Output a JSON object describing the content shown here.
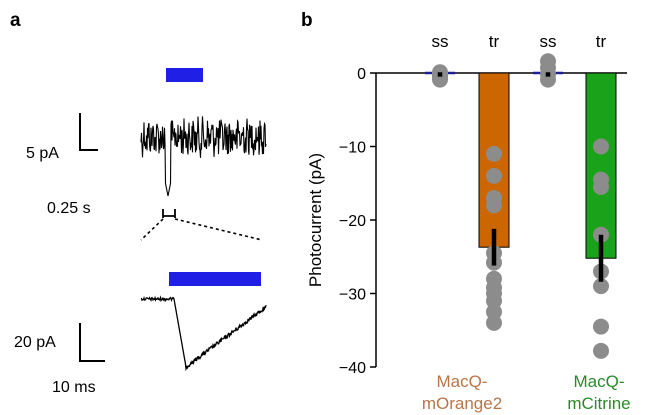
{
  "panel_a": {
    "label": "a",
    "scale_top": {
      "amplitude": "5 pA",
      "time": "0.25 s"
    },
    "scale_bottom": {
      "amplitude": "20 pA",
      "time": "10 ms"
    }
  },
  "panel_b": {
    "label": "b"
  },
  "colors": {
    "stimulus": "#1f1fe6",
    "morange_bar": "#cc6600",
    "mcitrine_bar": "#1aa31a",
    "morange_text": "#b8764a",
    "mcitrine_text": "#2a8a2a",
    "dots": "#8c8c8c"
  },
  "chart_data": {
    "type": "bar",
    "ylabel": "Photocurrent (pA)",
    "ylim": [
      -40,
      0
    ],
    "yticks": [
      0,
      -10,
      -20,
      -30,
      -40
    ],
    "ytick_labels": [
      "0",
      "−10",
      "−20",
      "−30",
      "−40"
    ],
    "categories": [
      "ss",
      "tr",
      "ss",
      "tr"
    ],
    "groups": [
      {
        "line1": "MacQ-",
        "line2": "mOrange2",
        "color_key": "morange_text"
      },
      {
        "line1": "MacQ-",
        "line2": "mCitrine",
        "color_key": "mcitrine_text"
      }
    ],
    "bars": [
      {
        "category": "ss",
        "group": "MacQ-mOrange2",
        "value": -0.2,
        "sem": 0.3,
        "color_key": null,
        "points": [
          0,
          -0.3,
          -0.6,
          -0.9,
          0.1,
          -0.4
        ]
      },
      {
        "category": "tr",
        "group": "MacQ-mOrange2",
        "value": -23.7,
        "sem": 2.5,
        "color_key": "morange_bar",
        "points": [
          -11,
          -14,
          -17,
          -18,
          -24.5,
          -25.8,
          -28,
          -29.2,
          -30,
          -31,
          -32.5,
          -34
        ]
      },
      {
        "category": "ss",
        "group": "MacQ-mCitrine",
        "value": -0.2,
        "sem": 0.3,
        "color_key": null,
        "points": [
          1.6,
          0.7,
          -0.2,
          -0.9
        ]
      },
      {
        "category": "tr",
        "group": "MacQ-mCitrine",
        "value": -25.2,
        "sem": 3.2,
        "color_key": "mcitrine_bar",
        "points": [
          -10,
          -14.5,
          -15.5,
          -22,
          -27,
          -29,
          -34.5,
          -37.8
        ]
      }
    ]
  }
}
